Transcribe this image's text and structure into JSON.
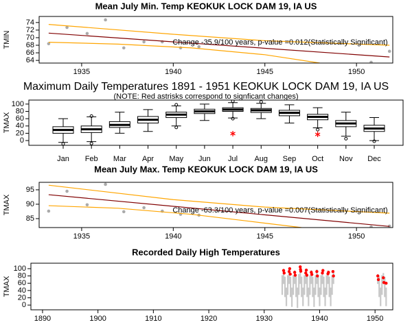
{
  "chart_data": [
    {
      "type": "scatter",
      "title": "Mean July Min. Temp KEOKUK LOCK DAM 19, IA US",
      "ylabel": "TMIN",
      "annotation": "Change -35.9/100 years, p-value =0.012(Statistically Significant)",
      "x": [
        1933.2,
        1934.2,
        1935.3,
        1936.3,
        1937.3,
        1938.4,
        1939.4,
        1940.4,
        1941.4,
        1950.8,
        1951.8
      ],
      "values": [
        68.4,
        72.7,
        71.1,
        74.7,
        67.3,
        68.9,
        68.9,
        67.3,
        67.6,
        63.5,
        66.4
      ],
      "point_color": "#aaaaaa",
      "fit_line": {
        "x": [
          1933.2,
          1951.8
        ],
        "values": [
          71.2,
          64.9
        ],
        "color": "#800000"
      },
      "upper_band": {
        "x": [
          1933.2,
          1940,
          1945,
          1951.8
        ],
        "values": [
          73.5,
          70.9,
          69.2,
          68.0
        ],
        "color": "#ffa500"
      },
      "lower_band": {
        "x": [
          1933.2,
          1937,
          1941,
          1945,
          1948
        ],
        "values": [
          68.8,
          68.3,
          67.3,
          65.5,
          63.3
        ],
        "color": "#ffa500"
      },
      "xlim": [
        1932.68,
        1951.98
      ],
      "ylim": [
        63.3,
        75.6
      ],
      "xticks": [
        1935,
        1940,
        1945,
        1950
      ],
      "yticks": [
        64,
        66,
        68,
        70,
        72,
        74
      ]
    },
    {
      "type": "box",
      "title": "Maximum Daily Temperatures 1891 - 1951 KEOKUK LOCK DAM 19, IA US",
      "subtitle": "(NOTE: Red astrisks correspond to signficant changes)",
      "ylabel": "TMAX",
      "categories": [
        "Jan",
        "Feb",
        "Mar",
        "Apr",
        "May",
        "Jun",
        "Jul",
        "Aug",
        "Sep",
        "Oct",
        "Nov",
        "Dec"
      ],
      "min": [
        -5,
        -3,
        20,
        25,
        40,
        55,
        62,
        60,
        48,
        35,
        12,
        0
      ],
      "q1": [
        20,
        22,
        36,
        48,
        63,
        74,
        80,
        77,
        68,
        57,
        38,
        25
      ],
      "median": [
        29,
        31,
        43,
        57,
        71,
        80,
        85,
        83,
        76,
        65,
        47,
        33
      ],
      "q3": [
        38,
        40,
        52,
        66,
        78,
        86,
        90,
        88,
        83,
        72,
        55,
        42
      ],
      "max": [
        60,
        65,
        78,
        85,
        95,
        100,
        104,
        102,
        98,
        90,
        78,
        63
      ],
      "outliers": [
        [
          -9
        ],
        [
          67,
          -8
        ],
        [],
        [],
        [
          36,
          98
        ],
        [],
        [
          108,
          60
        ],
        [
          106
        ],
        [],
        [
          30
        ],
        [
          5
        ],
        [
          -2
        ]
      ],
      "asterisks": [
        null,
        null,
        null,
        null,
        null,
        null,
        19,
        null,
        null,
        17,
        null,
        null
      ],
      "asterisk_color": "#ff0000",
      "ylim": [
        -13,
        111
      ],
      "yticks": [
        0,
        20,
        40,
        60,
        80,
        100
      ]
    },
    {
      "type": "scatter",
      "title": "Mean July Max. Temp KEOKUK LOCK DAM 19, IA US",
      "ylabel": "TMAX",
      "annotation": "Change -63.3/100 years, p-value =0.007(Statistically Significant)",
      "x": [
        1933.2,
        1934.2,
        1935.3,
        1936.3,
        1937.3,
        1938.4,
        1939.4,
        1940.4,
        1941.4,
        1950.8,
        1951.8
      ],
      "values": [
        87.6,
        94.5,
        89.8,
        96.9,
        87.4,
        88.8,
        87.6,
        86.5,
        86.2,
        82.1,
        82.4
      ],
      "point_color": "#aaaaaa",
      "fit_line": {
        "x": [
          1933.2,
          1951.8
        ],
        "values": [
          93.3,
          82.3
        ],
        "color": "#800000"
      },
      "upper_band": {
        "x": [
          1933.2,
          1940,
          1945,
          1951.8
        ],
        "values": [
          96.6,
          91.6,
          89.0,
          86.9
        ],
        "color": "#ffa500"
      },
      "lower_band": {
        "x": [
          1933.2,
          1937,
          1941,
          1944,
          1947
        ],
        "values": [
          89.5,
          88.6,
          86.5,
          84.2,
          81.9
        ],
        "color": "#ffa500"
      },
      "xlim": [
        1932.68,
        1951.98
      ],
      "ylim": [
        81.9,
        97.6
      ],
      "xticks": [
        1935,
        1940,
        1945,
        1950
      ],
      "yticks": [
        85,
        90,
        95
      ]
    },
    {
      "type": "range_scatter",
      "title": "Recorded Daily High Temperatures",
      "ylabel": "TMAX",
      "ranges": {
        "color": "#c8c8c8",
        "x": [
          1933.25,
          1933.5,
          1933.75,
          1934,
          1934.25,
          1934.5,
          1934.75,
          1935,
          1935.25,
          1935.5,
          1935.75,
          1936,
          1936.25,
          1936.5,
          1936.75,
          1937,
          1937.25,
          1937.5,
          1937.75,
          1938,
          1938.25,
          1938.5,
          1938.75,
          1939,
          1939.25,
          1939.5,
          1939.75,
          1940,
          1940.25,
          1940.5,
          1940.75,
          1941,
          1941.25,
          1941.5,
          1941.75,
          1942,
          1942.25,
          1942.5,
          1950.5,
          1950.75,
          1951,
          1951.25,
          1951.5,
          1951.75,
          1952
        ],
        "low": [
          28,
          58,
          22,
          -3,
          28,
          58,
          22,
          -5,
          28,
          58,
          22,
          -8,
          28,
          58,
          22,
          -3,
          28,
          58,
          22,
          -3,
          28,
          58,
          22,
          -5,
          28,
          58,
          22,
          -3,
          28,
          58,
          22,
          -3,
          28,
          58,
          22,
          -3,
          28,
          58,
          58,
          22,
          -3,
          28,
          58,
          22,
          -3
        ],
        "high": [
          82,
          98,
          78,
          48,
          82,
          100,
          78,
          48,
          82,
          95,
          78,
          48,
          85,
          105,
          78,
          48,
          82,
          98,
          78,
          48,
          82,
          96,
          78,
          48,
          82,
          98,
          78,
          48,
          82,
          97,
          78,
          48,
          82,
          95,
          78,
          48,
          82,
          96,
          85,
          78,
          48,
          82,
          88,
          78,
          48
        ]
      },
      "x": [
        1933.5,
        1933.6,
        1934.5,
        1934.6,
        1934.7,
        1935.5,
        1935.6,
        1936.5,
        1936.55,
        1936.6,
        1937.5,
        1937.6,
        1937.7,
        1938.5,
        1938.6,
        1939.5,
        1939.6,
        1940.5,
        1940.6,
        1941.5,
        1941.6,
        1942.4,
        1942.5,
        1950.5,
        1950.6,
        1951.5,
        1951.6,
        1952.0
      ],
      "values": [
        95,
        88,
        92,
        100,
        85,
        90,
        82,
        105,
        98,
        93,
        88,
        96,
        82,
        90,
        84,
        92,
        80,
        88,
        95,
        86,
        90,
        92,
        80,
        80,
        70,
        75,
        62,
        60
      ],
      "point_color": "#ff0000",
      "xlim": [
        1887.9,
        1953.2
      ],
      "ylim": [
        -13,
        115
      ],
      "xticks": [
        1890,
        1900,
        1910,
        1920,
        1930,
        1940,
        1950
      ],
      "yticks": [
        0,
        20,
        40,
        60,
        80,
        100
      ]
    }
  ]
}
